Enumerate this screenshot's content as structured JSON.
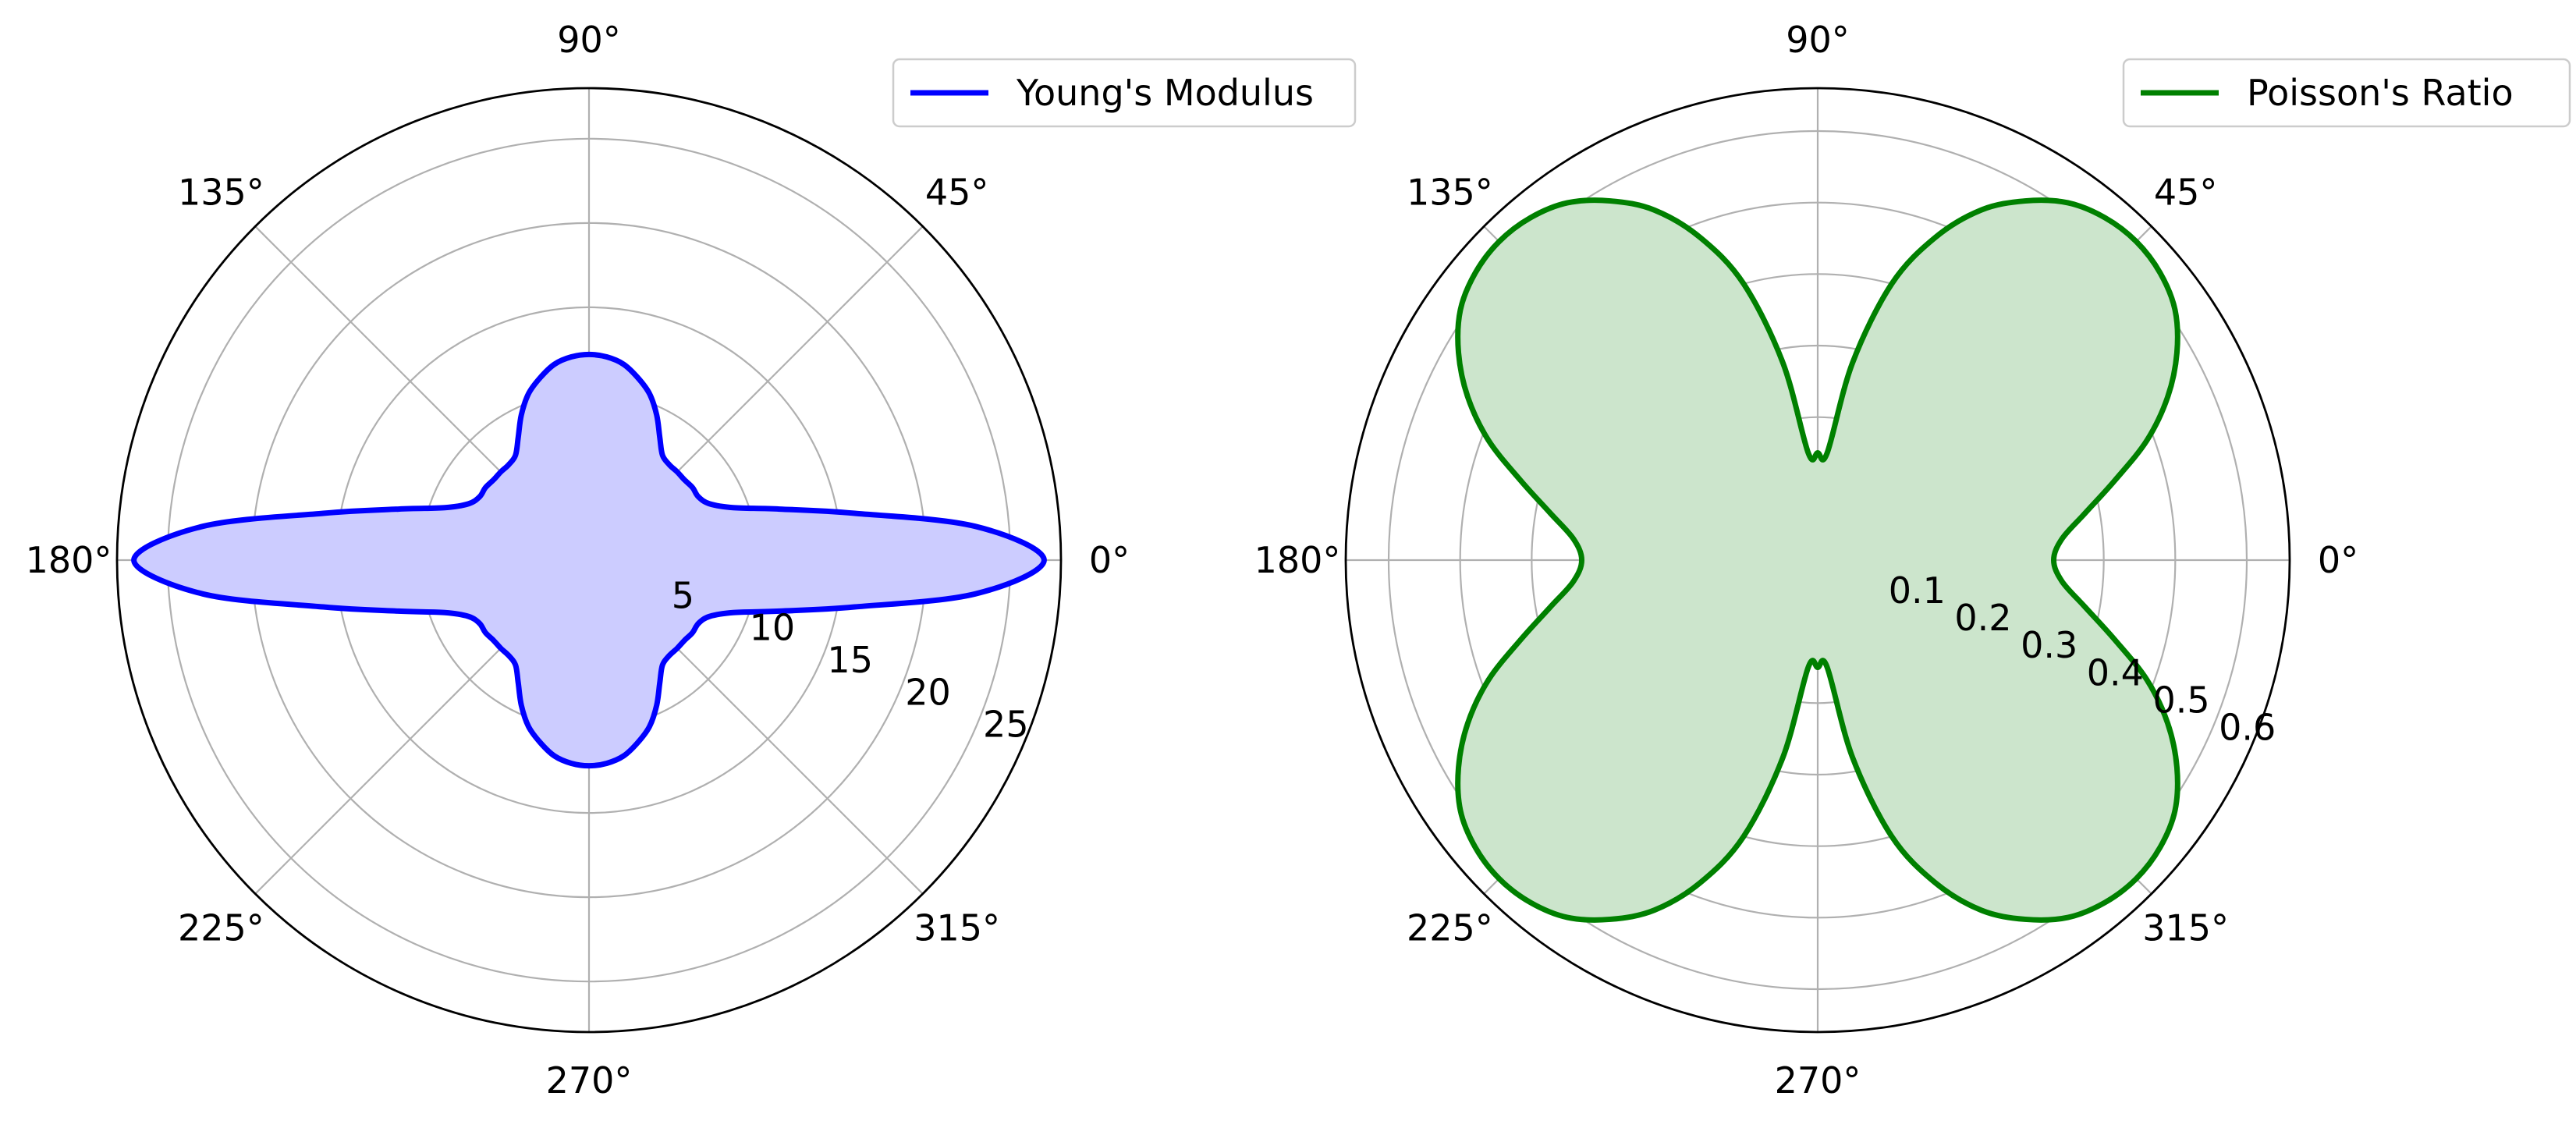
{
  "chart_data": [
    {
      "type": "polar-area",
      "theta_unit": "degrees",
      "angle_ticks": [
        0,
        45,
        90,
        135,
        180,
        225,
        270,
        315
      ],
      "angle_tick_labels": [
        "0°",
        "45°",
        "90°",
        "135°",
        "180°",
        "225°",
        "270°",
        "315°"
      ],
      "r_ticks": [
        5,
        10,
        15,
        20,
        25
      ],
      "r_tick_labels": [
        "5",
        "10",
        "15",
        "20",
        "25"
      ],
      "rlim": [
        0,
        28
      ],
      "grid": true,
      "legend_position": "top-right",
      "series": [
        {
          "name": "Young's Modulus",
          "color": "#0000ff",
          "fill_color": "#ccccff",
          "theta": [
            0,
            5,
            10,
            15,
            20,
            25,
            30,
            35,
            40,
            45,
            50,
            55,
            60,
            65,
            70,
            75,
            80,
            85,
            90,
            95,
            100,
            105,
            110,
            115,
            120,
            125,
            130,
            135,
            140,
            145,
            150,
            155,
            160,
            165,
            170,
            175,
            180,
            185,
            190,
            195,
            200,
            205,
            210,
            215,
            220,
            225,
            230,
            235,
            240,
            245,
            250,
            255,
            260,
            265,
            270,
            275,
            280,
            285,
            290,
            295,
            300,
            305,
            310,
            315,
            320,
            325,
            330,
            335,
            340,
            345,
            350,
            355
          ],
          "r": [
            27.0,
            23.0,
            16.0,
            11.7,
            9.1,
            7.9,
            7.5,
            7.5,
            7.4,
            7.4,
            7.4,
            7.6,
            8.4,
            9.5,
            10.5,
            11.2,
            11.8,
            12.1,
            12.2,
            12.1,
            11.8,
            11.2,
            10.5,
            9.5,
            8.4,
            7.6,
            7.4,
            7.4,
            7.4,
            7.5,
            7.5,
            7.9,
            9.1,
            11.7,
            16.0,
            23.0,
            27.0,
            23.0,
            16.0,
            11.7,
            9.1,
            7.9,
            7.5,
            7.5,
            7.4,
            7.4,
            7.4,
            7.6,
            8.4,
            9.5,
            10.5,
            11.2,
            11.8,
            12.1,
            12.2,
            12.1,
            11.8,
            11.2,
            10.5,
            9.5,
            8.4,
            7.6,
            7.4,
            7.4,
            7.4,
            7.5,
            7.5,
            7.9,
            9.1,
            11.7,
            16.0,
            23.0
          ]
        }
      ]
    },
    {
      "type": "polar-area",
      "theta_unit": "degrees",
      "angle_ticks": [
        0,
        45,
        90,
        135,
        180,
        225,
        270,
        315
      ],
      "angle_tick_labels": [
        "0°",
        "45°",
        "90°",
        "135°",
        "180°",
        "225°",
        "270°",
        "315°"
      ],
      "r_ticks": [
        0.1,
        0.2,
        0.3,
        0.4,
        0.5,
        0.6
      ],
      "r_tick_labels": [
        "0.1",
        "0.2",
        "0.3",
        "0.4",
        "0.5",
        "0.6"
      ],
      "rlim": [
        0,
        0.66
      ],
      "grid": true,
      "legend_position": "top-right",
      "series": [
        {
          "name": "Poisson's Ratio",
          "color": "#008000",
          "fill_color": "#cce5cc",
          "theta": [
            0,
            5,
            10,
            15,
            20,
            25,
            30,
            35,
            40,
            45,
            50,
            55,
            60,
            65,
            70,
            75,
            80,
            85,
            90,
            95,
            100,
            105,
            110,
            115,
            120,
            125,
            130,
            135,
            140,
            145,
            150,
            155,
            160,
            165,
            170,
            175,
            180,
            185,
            190,
            195,
            200,
            205,
            210,
            215,
            220,
            225,
            230,
            235,
            240,
            245,
            250,
            255,
            260,
            265,
            270,
            275,
            280,
            285,
            290,
            295,
            300,
            305,
            310,
            315,
            320,
            325,
            330,
            335,
            340,
            345,
            350,
            355
          ],
          "r": [
            0.33,
            0.343,
            0.38,
            0.43,
            0.49,
            0.54,
            0.58,
            0.61,
            0.625,
            0.63,
            0.625,
            0.61,
            0.58,
            0.54,
            0.48,
            0.4,
            0.28,
            0.15,
            0.15,
            0.15,
            0.28,
            0.4,
            0.48,
            0.54,
            0.58,
            0.61,
            0.625,
            0.63,
            0.625,
            0.61,
            0.58,
            0.54,
            0.49,
            0.43,
            0.38,
            0.343,
            0.33,
            0.343,
            0.38,
            0.43,
            0.49,
            0.54,
            0.58,
            0.61,
            0.625,
            0.63,
            0.625,
            0.61,
            0.58,
            0.54,
            0.48,
            0.4,
            0.28,
            0.15,
            0.15,
            0.15,
            0.28,
            0.4,
            0.48,
            0.54,
            0.58,
            0.61,
            0.625,
            0.63,
            0.625,
            0.61,
            0.58,
            0.54,
            0.49,
            0.43,
            0.38,
            0.343
          ]
        }
      ]
    }
  ]
}
